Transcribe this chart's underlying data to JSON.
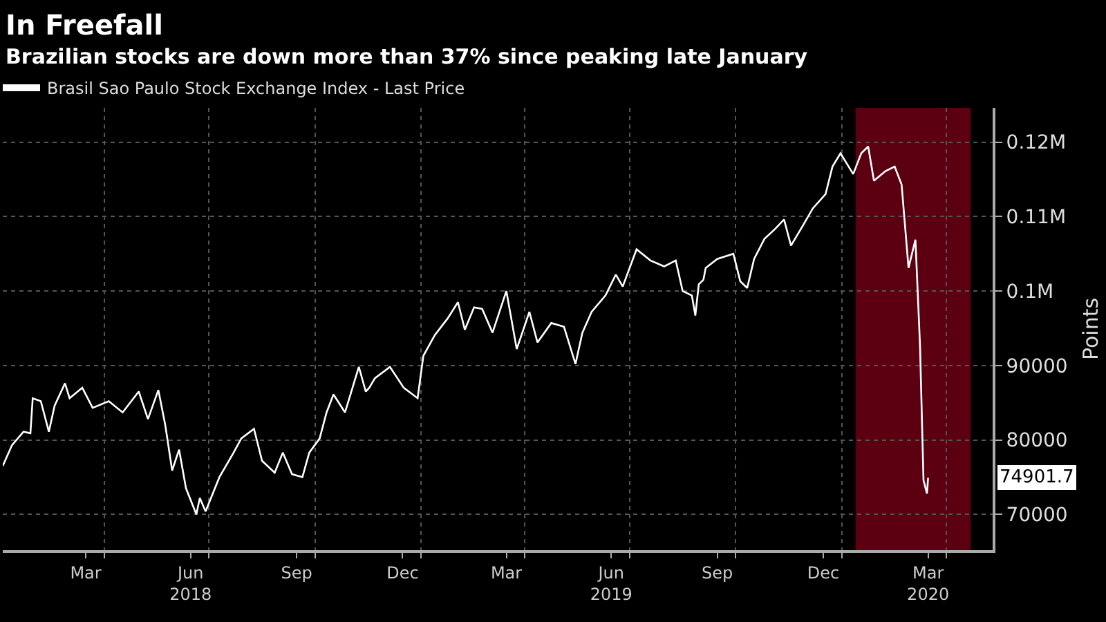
{
  "chart_data": {
    "type": "line",
    "title": "In Freefall",
    "subtitle": "Brazilian stocks are down more than 37% since peaking late January",
    "ylabel": "Points",
    "legend": "top left",
    "grid": true,
    "x": [
      "2018-01-03",
      "2018-01-11",
      "2018-01-21",
      "2018-01-27",
      "2018-01-29",
      "2018-02-05",
      "2018-02-12",
      "2018-02-17",
      "2018-02-26",
      "2018-03-02",
      "2018-03-13",
      "2018-03-22",
      "2018-04-05",
      "2018-04-17",
      "2018-05-01",
      "2018-05-09",
      "2018-05-18",
      "2018-05-24",
      "2018-05-30",
      "2018-06-05",
      "2018-06-11",
      "2018-06-20",
      "2018-06-23",
      "2018-06-28",
      "2018-07-10",
      "2018-07-22",
      "2018-07-29",
      "2018-08-09",
      "2018-08-16",
      "2018-08-27",
      "2018-09-03",
      "2018-09-11",
      "2018-09-20",
      "2018-09-26",
      "2018-10-05",
      "2018-10-11",
      "2018-10-17",
      "2018-10-27",
      "2018-11-08",
      "2018-11-14",
      "2018-11-17",
      "2018-11-22",
      "2018-12-05",
      "2018-12-17",
      "2018-12-29",
      "2019-01-03",
      "2019-01-13",
      "2019-01-24",
      "2019-02-02",
      "2019-02-08",
      "2019-02-16",
      "2019-02-23",
      "2019-03-04",
      "2019-03-16",
      "2019-03-25",
      "2019-04-05",
      "2019-04-12",
      "2019-04-24",
      "2019-05-05",
      "2019-05-15",
      "2019-05-21",
      "2019-05-29",
      "2019-06-10",
      "2019-06-19",
      "2019-06-25",
      "2019-07-07",
      "2019-07-19",
      "2019-07-31",
      "2019-08-10",
      "2019-08-16",
      "2019-08-24",
      "2019-08-27",
      "2019-08-30",
      "2019-09-03",
      "2019-09-05",
      "2019-09-15",
      "2019-09-29",
      "2019-10-05",
      "2019-10-11",
      "2019-10-17",
      "2019-10-26",
      "2019-11-04",
      "2019-11-12",
      "2019-11-18",
      "2019-11-28",
      "2019-12-07",
      "2019-12-18",
      "2019-12-24",
      "2019-12-31",
      "2020-01-11",
      "2020-01-18",
      "2020-01-24",
      "2020-01-29",
      "2020-02-08",
      "2020-02-16",
      "2020-02-22",
      "2020-02-28",
      "2020-03-05",
      "2020-03-09",
      "2020-03-12",
      "2020-03-15",
      "2020-03-16"
    ],
    "series": [
      {
        "name": "Brasil Sao Paulo Stock Exchange Index - Last Price",
        "color": "#ffffff",
        "values": [
          76500,
          79300,
          81100,
          80900,
          85600,
          85200,
          81100,
          84600,
          87600,
          85600,
          87000,
          84300,
          85200,
          83700,
          86500,
          82800,
          86700,
          82000,
          75900,
          78700,
          73500,
          70000,
          72200,
          70400,
          75000,
          78200,
          80200,
          81500,
          77200,
          75600,
          78300,
          75400,
          75000,
          78300,
          80200,
          83700,
          86100,
          83700,
          89800,
          86500,
          87000,
          88300,
          89800,
          87000,
          85600,
          91300,
          94100,
          96300,
          98500,
          94800,
          97800,
          97600,
          94400,
          100000,
          92200,
          97200,
          93100,
          95700,
          95200,
          90200,
          94400,
          97200,
          99400,
          102200,
          100600,
          105600,
          104100,
          103300,
          104100,
          100000,
          99400,
          96700,
          100900,
          101500,
          103100,
          104300,
          105000,
          101300,
          100400,
          104300,
          107000,
          108300,
          109600,
          106100,
          108700,
          111100,
          113000,
          116700,
          118500,
          115700,
          118500,
          119400,
          114800,
          116100,
          116700,
          114300,
          103100,
          106900,
          92600,
          74600,
          72800,
          74901.7
        ]
      }
    ],
    "xlim": [
      "2018-01-03",
      "2020-05-11"
    ],
    "xticks": [
      {
        "value": "2018-03-16",
        "label": "Mar"
      },
      {
        "value": "2018-06-15",
        "label": "Jun\n2018"
      },
      {
        "value": "2018-09-15",
        "label": "Sep"
      },
      {
        "value": "2018-12-16",
        "label": "Dec"
      },
      {
        "value": "2019-03-16",
        "label": "Mar"
      },
      {
        "value": "2019-06-15",
        "label": "Jun\n2019"
      },
      {
        "value": "2019-09-15",
        "label": "Sep"
      },
      {
        "value": "2019-12-16",
        "label": "Dec"
      },
      {
        "value": "2020-03-16",
        "label": "Mar\n2020"
      },
      {
        "value": "2018-04-01",
        "label": null
      },
      {
        "value": "2018-07-01",
        "label": null
      },
      {
        "value": "2018-10-01",
        "label": null
      },
      {
        "value": "2019-01-01",
        "label": null
      },
      {
        "value": "2019-04-01",
        "label": null
      },
      {
        "value": "2019-07-01",
        "label": null
      },
      {
        "value": "2019-10-01",
        "label": null
      },
      {
        "value": "2020-01-01",
        "label": null
      },
      {
        "value": "2020-04-01",
        "label": null
      }
    ],
    "ylim": [
      65200,
      124600
    ],
    "yticks": [
      70000,
      80000,
      90000,
      {
        "value": 100000,
        "label": "0.1M"
      },
      {
        "value": 110000,
        "label": "0.11M"
      },
      {
        "value": 120000,
        "label": "0.12M"
      }
    ],
    "bands": [
      {
        "axis": "x",
        "from": "2020-01-13",
        "to": "2020-04-22",
        "color": "#5c0011"
      }
    ],
    "annotations": [
      "74901.7"
    ]
  }
}
